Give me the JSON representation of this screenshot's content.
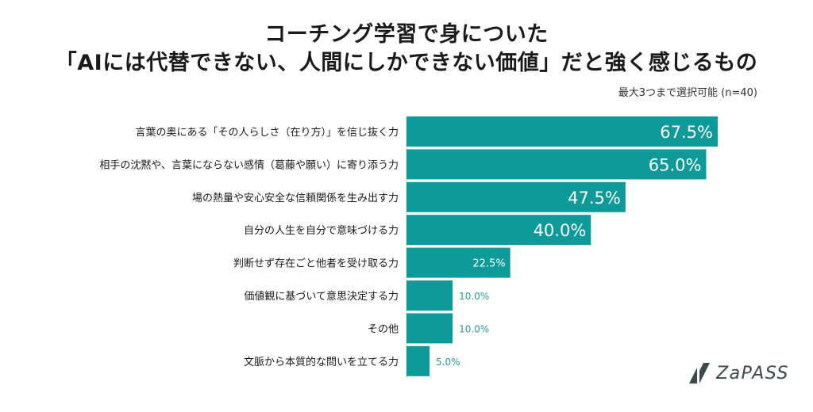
{
  "title_lines": [
    "コーチング学習で身についた",
    "「AIには代替できない、人間にしかできない価値」だと強く感じるもの"
  ],
  "note": "最大3つまで選択可能 (n=40)",
  "logo": {
    "text": "ZaPASS",
    "icon": "zapass-logo-icon"
  },
  "colors": {
    "bar": "#0f9a9a",
    "label_inside": "#ffffff",
    "label_outside": "#2a9a9a",
    "text": "#1a1a1a"
  },
  "chart_data": {
    "type": "bar",
    "orientation": "horizontal",
    "categories": [
      "言葉の奥にある「その人らしさ（在り方）」を信じ抜く力",
      "相手の沈黙や、言葉にならない感情（葛藤や願い）に寄り添う力",
      "場の熱量や安心安全な信頼関係を生み出す力",
      "自分の人生を自分で意味づける力",
      "判断せず存在ごと他者を受け取る力",
      "価値観に基づいて意思決定する力",
      "その他",
      "文脈から本質的な問いを立てる力"
    ],
    "values": [
      67.5,
      65.0,
      47.5,
      40.0,
      22.5,
      10.0,
      10.0,
      5.0
    ],
    "value_labels": [
      "67.5%",
      "65.0%",
      "47.5%",
      "40.0%",
      "22.5%",
      "10.0%",
      "10.0%",
      "5.0%"
    ],
    "unit": "%",
    "xlim": [
      0,
      100
    ],
    "grid": false,
    "legend": "none"
  }
}
